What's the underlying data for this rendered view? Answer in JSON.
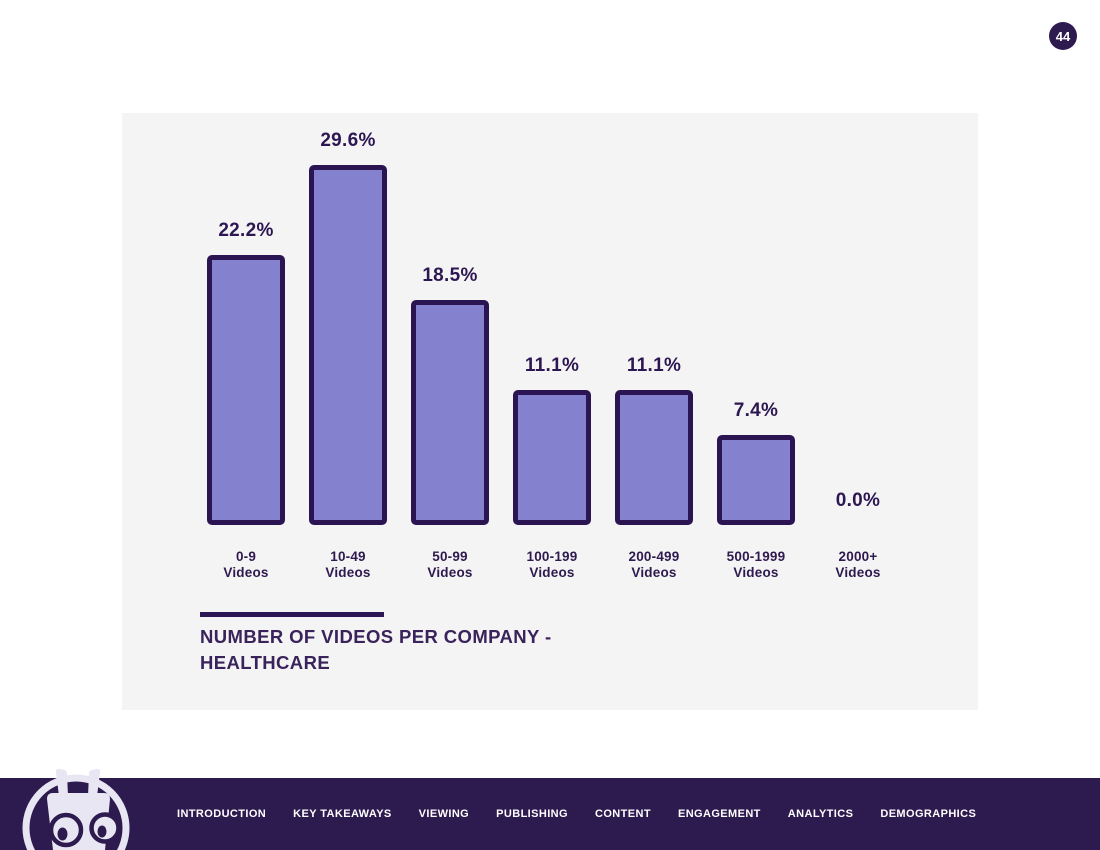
{
  "page": {
    "background_color": "#ffffff",
    "badge_number": "44"
  },
  "chart_data": {
    "type": "bar",
    "title": "NUMBER OF VIDEOS PER COMPANY - HEALTHCARE",
    "title_lines": [
      "NUMBER OF VIDEOS PER COMPANY -",
      "HEALTHCARE"
    ],
    "categories": [
      "0-9 Videos",
      "10-49 Videos",
      "50-99 Videos",
      "100-199 Videos",
      "200-499 Videos",
      "500-1999 Videos",
      "2000+ Videos"
    ],
    "category_lines": [
      [
        "0-9",
        "Videos"
      ],
      [
        "10-49",
        "Videos"
      ],
      [
        "50-99",
        "Videos"
      ],
      [
        "100-199",
        "Videos"
      ],
      [
        "200-499",
        "Videos"
      ],
      [
        "500-1999",
        "Videos"
      ],
      [
        "2000+",
        "Videos"
      ]
    ],
    "values": [
      22.2,
      29.6,
      18.5,
      11.1,
      11.1,
      7.4,
      0.0
    ],
    "value_labels": [
      "22.2%",
      "29.6%",
      "18.5%",
      "11.1%",
      "11.1%",
      "7.4%",
      "0.0%"
    ],
    "xlabel": "",
    "ylabel": "",
    "ylim": [
      0,
      30
    ],
    "grid": false,
    "legend": "none",
    "bar_fill_color": "#8481ce",
    "bar_border_color": "#2b1452",
    "panel_background_color": "#f4f4f4",
    "value_text_color": "#2d1752",
    "category_text_color": "#2e1a4e",
    "title_text_color": "#39235a"
  },
  "footer": {
    "background_color": "#2d1a4e",
    "mascot_icon": "robot-mascot-logo",
    "mascot_color": "#e9e6f3",
    "nav_items": [
      {
        "label": "INTRODUCTION"
      },
      {
        "label": "KEY TAKEAWAYS"
      },
      {
        "label": "VIEWING"
      },
      {
        "label": "PUBLISHING"
      },
      {
        "label": "CONTENT"
      },
      {
        "label": "ENGAGEMENT"
      },
      {
        "label": "ANALYTICS"
      },
      {
        "label": "DEMOGRAPHICS"
      }
    ]
  }
}
